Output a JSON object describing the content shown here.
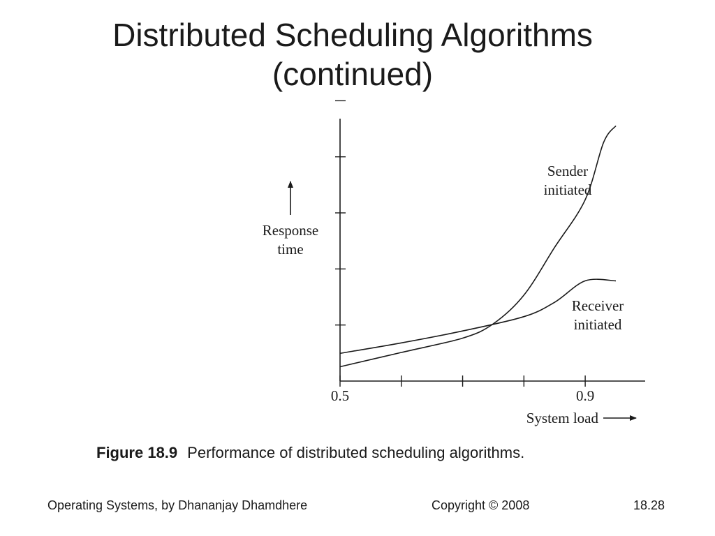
{
  "slide": {
    "title_line1": "Distributed Scheduling Algorithms",
    "title_line2": "(continued)"
  },
  "figure": {
    "number": "Figure 18.9",
    "caption": "Performance of distributed scheduling algorithms."
  },
  "footer": {
    "left": "Operating Systems, by Dhananjay Dhamdhere",
    "center": "Copyright © 2008",
    "right": "18.28"
  },
  "chart_data": {
    "type": "line",
    "xlabel": "System load",
    "ylabel_line1": "Response",
    "ylabel_line2": "time",
    "x_tick_labels": [
      {
        "x": 0.5,
        "label": "0.5"
      },
      {
        "x": 0.9,
        "label": "0.9"
      }
    ],
    "x_ticks": [
      0.5,
      0.6,
      0.7,
      0.8,
      0.9
    ],
    "y_ticks": [
      1,
      2,
      3,
      4,
      5
    ],
    "xlim": [
      0.5,
      0.99
    ],
    "ylim": [
      0,
      5.5
    ],
    "grid": false,
    "series": [
      {
        "name_line1": "Sender",
        "name_line2": "initiated",
        "x": [
          0.5,
          0.6,
          0.7,
          0.75,
          0.8,
          0.85,
          0.9,
          0.93,
          0.95
        ],
        "y": [
          0.3,
          0.6,
          0.9,
          1.2,
          1.8,
          2.8,
          3.8,
          5.0,
          5.35
        ]
      },
      {
        "name_line1": "Receiver",
        "name_line2": "initiated",
        "x": [
          0.5,
          0.6,
          0.7,
          0.8,
          0.85,
          0.9,
          0.95
        ],
        "y": [
          0.58,
          0.8,
          1.05,
          1.35,
          1.65,
          2.1,
          2.1
        ]
      }
    ]
  }
}
